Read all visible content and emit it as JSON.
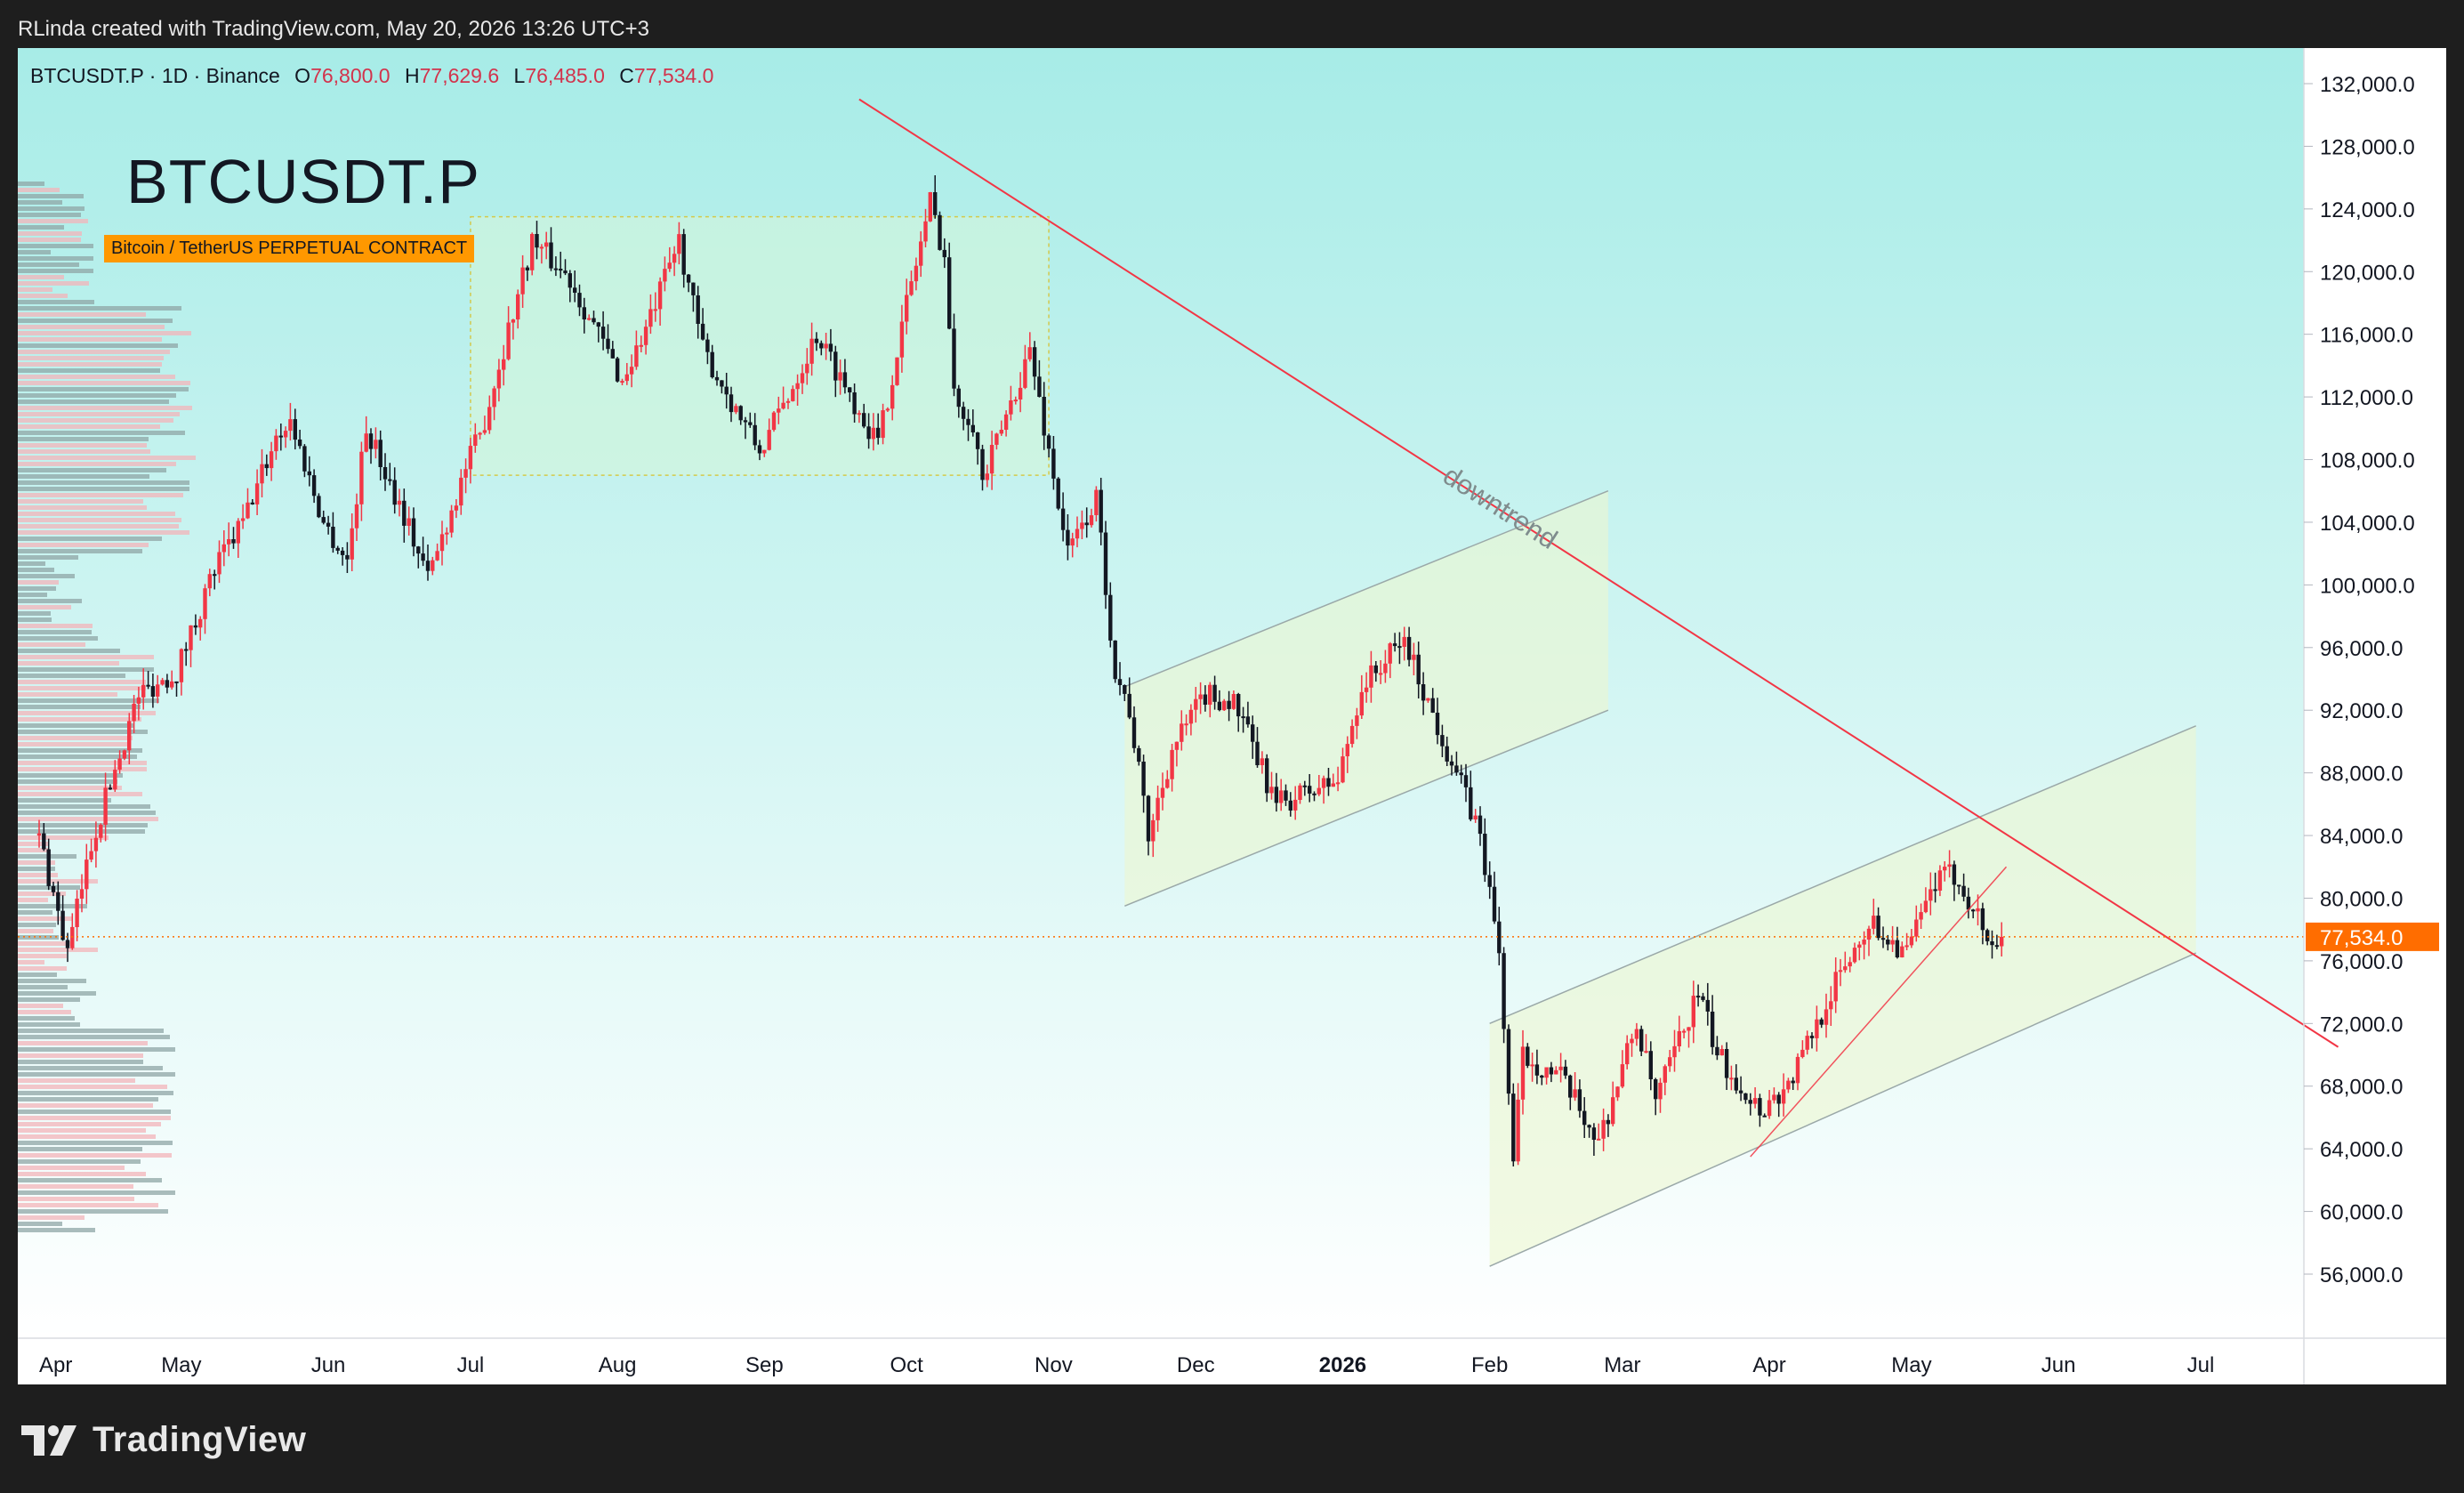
{
  "header": {
    "attribution": "RLinda created with TradingView.com, May 20, 2026 13:26 UTC+3"
  },
  "ohlc": {
    "symbol_line": "BTCUSDT.P · 1D · Binance",
    "o_label": "O",
    "o_value": "76,800.0",
    "h_label": "H",
    "h_value": "77,629.6",
    "l_label": "L",
    "l_value": "76,485.0",
    "c_label": "C",
    "c_value": "77,534.0"
  },
  "symbol": {
    "title": "BTCUSDT.P",
    "description": "Bitcoin / TetherUS PERPETUAL CONTRACT"
  },
  "footer": {
    "brand": "TradingView"
  },
  "colors": {
    "up": "#f23645",
    "down": "#131722",
    "trendline": "#f23645",
    "price_badge": "#ff6d00",
    "bg_top": "#a7ece7",
    "bg_bottom": "#ffffff"
  },
  "chart_data": {
    "type": "candlestick",
    "symbol": "BTCUSDT.P",
    "interval": "1D",
    "exchange": "Binance",
    "ylim": [
      53000,
      135000
    ],
    "y_ticks": [
      "132,000.0",
      "128,000.0",
      "124,000.0",
      "120,000.0",
      "116,000.0",
      "112,000.0",
      "108,000.0",
      "104,000.0",
      "100,000.0",
      "96,000.0",
      "92,000.0",
      "88,000.0",
      "84,000.0",
      "80,000.0",
      "76,000.0",
      "72,000.0",
      "68,000.0",
      "64,000.0",
      "60,000.0",
      "56,000.0"
    ],
    "x_ticks": [
      {
        "label": "Apr",
        "date": "2025-04-01"
      },
      {
        "label": "May",
        "date": "2025-05-01"
      },
      {
        "label": "Jun",
        "date": "2025-06-01"
      },
      {
        "label": "Jul",
        "date": "2025-07-01"
      },
      {
        "label": "Aug",
        "date": "2025-08-01"
      },
      {
        "label": "Sep",
        "date": "2025-09-01"
      },
      {
        "label": "Oct",
        "date": "2025-10-01"
      },
      {
        "label": "Nov",
        "date": "2025-11-01"
      },
      {
        "label": "Dec",
        "date": "2025-12-01"
      },
      {
        "label": "2026",
        "date": "2026-01-01",
        "bold": true
      },
      {
        "label": "Feb",
        "date": "2026-02-01"
      },
      {
        "label": "Mar",
        "date": "2026-03-01"
      },
      {
        "label": "Apr",
        "date": "2026-04-01"
      },
      {
        "label": "May",
        "date": "2026-05-01"
      },
      {
        "label": "Jun",
        "date": "2026-06-01"
      },
      {
        "label": "Jul",
        "date": "2026-07-01"
      }
    ],
    "last_price": 77534,
    "last_price_label": "77,534.0",
    "price_path": [
      [
        "2025-04-01",
        84000
      ],
      [
        "2025-04-07",
        76500
      ],
      [
        "2025-04-12",
        83500
      ],
      [
        "2025-04-22",
        93000
      ],
      [
        "2025-04-30",
        94500
      ],
      [
        "2025-05-08",
        101000
      ],
      [
        "2025-05-14",
        104000
      ],
      [
        "2025-05-21",
        109500
      ],
      [
        "2025-05-24",
        110500
      ],
      [
        "2025-05-31",
        104000
      ],
      [
        "2025-06-05",
        101500
      ],
      [
        "2025-06-09",
        110000
      ],
      [
        "2025-06-17",
        104500
      ],
      [
        "2025-06-22",
        100500
      ],
      [
        "2025-06-30",
        107500
      ],
      [
        "2025-07-03",
        109500
      ],
      [
        "2025-07-14",
        122000
      ],
      [
        "2025-07-22",
        119500
      ],
      [
        "2025-08-02",
        113000
      ],
      [
        "2025-08-08",
        117000
      ],
      [
        "2025-08-14",
        122000
      ],
      [
        "2025-08-19",
        115000
      ],
      [
        "2025-08-31",
        108500
      ],
      [
        "2025-09-05",
        111500
      ],
      [
        "2025-09-12",
        116000
      ],
      [
        "2025-09-25",
        109000
      ],
      [
        "2025-10-01",
        118000
      ],
      [
        "2025-10-06",
        124500
      ],
      [
        "2025-10-09",
        121000
      ],
      [
        "2025-10-11",
        112000
      ],
      [
        "2025-10-15",
        110500
      ],
      [
        "2025-10-17",
        106500
      ],
      [
        "2025-10-27",
        115000
      ],
      [
        "2025-11-04",
        102000
      ],
      [
        "2025-11-10",
        105500
      ],
      [
        "2025-11-14",
        94500
      ],
      [
        "2025-11-17",
        92000
      ],
      [
        "2025-11-21",
        84000
      ],
      [
        "2025-11-26",
        89500
      ],
      [
        "2025-12-03",
        93000
      ],
      [
        "2025-12-09",
        92500
      ],
      [
        "2025-12-18",
        86000
      ],
      [
        "2025-12-31",
        87500
      ],
      [
        "2026-01-05",
        93500
      ],
      [
        "2026-01-14",
        96500
      ],
      [
        "2026-01-19",
        92500
      ],
      [
        "2026-01-25",
        88000
      ],
      [
        "2026-01-30",
        84000
      ],
      [
        "2026-02-03",
        76500
      ],
      [
        "2026-02-06",
        63000
      ],
      [
        "2026-02-08",
        70000
      ],
      [
        "2026-02-16",
        68500
      ],
      [
        "2026-02-24",
        64500
      ],
      [
        "2026-03-04",
        72000
      ],
      [
        "2026-03-08",
        67000
      ],
      [
        "2026-03-17",
        74000
      ],
      [
        "2026-03-21",
        70000
      ],
      [
        "2026-03-30",
        66500
      ],
      [
        "2026-04-05",
        68000
      ],
      [
        "2026-04-14",
        74000
      ],
      [
        "2026-04-22",
        78500
      ],
      [
        "2026-04-30",
        76500
      ],
      [
        "2026-05-06",
        81000
      ],
      [
        "2026-05-10",
        81500
      ],
      [
        "2026-05-14",
        79500
      ],
      [
        "2026-05-18",
        76800
      ],
      [
        "2026-05-20",
        77534
      ]
    ],
    "drawings": {
      "trendline_label": "downtrend",
      "trendline": [
        [
          "2025-09-21",
          131000
        ],
        [
          "2026-07-30",
          70500
        ]
      ],
      "short_uptrend": [
        [
          "2026-03-28",
          63500
        ],
        [
          "2026-05-21",
          82000
        ]
      ],
      "range_box": {
        "from": "2025-07-01",
        "to": "2025-10-31",
        "top": 123500,
        "bottom": 107000
      },
      "channel_nov_jan": {
        "from": "2025-11-16",
        "to": "2026-02-26",
        "lower_start": 79500,
        "lower_end": 92000,
        "upper_start": 93500,
        "upper_end": 106000
      },
      "channel_feb_jun": {
        "from": "2026-02-01",
        "to": "2026-06-30",
        "lower_start": 56500,
        "lower_end": 76500,
        "upper_start": 72000,
        "upper_end": 91000
      }
    }
  }
}
